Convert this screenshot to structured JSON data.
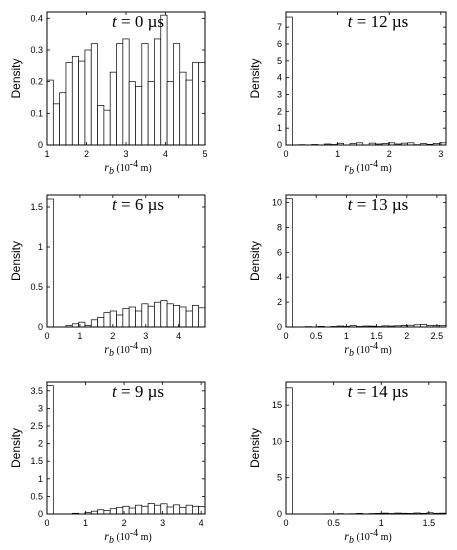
{
  "chart_data": [
    {
      "type": "bar",
      "title": "t = 0 µs",
      "title_var": "t",
      "title_rest": " = 0 µs",
      "ylabel": "Density",
      "xlabel": {
        "var": "r",
        "sub": "b",
        "unit": " (10",
        "exp": "-4",
        "unit_end": " m)"
      },
      "xlim": [
        1,
        5
      ],
      "ylim": [
        0,
        0.42
      ],
      "xticks": [
        1,
        2,
        3,
        4,
        5
      ],
      "xtick_labels": [
        "1",
        "2",
        "3",
        "4",
        "5"
      ],
      "yticks": [
        0,
        0.1,
        0.2,
        0.3,
        0.4
      ],
      "ytick_labels": [
        "0",
        "0.1",
        "0.2",
        "0.3",
        "0.4"
      ],
      "bin_edges": [
        1.0,
        1.16,
        1.32,
        1.48,
        1.64,
        1.8,
        1.96,
        2.12,
        2.28,
        2.44,
        2.6,
        2.76,
        2.92,
        3.08,
        3.24,
        3.4,
        3.56,
        3.72,
        3.88,
        4.04,
        4.2,
        4.36,
        4.52,
        4.68,
        4.84,
        5.0
      ],
      "values": [
        0.205,
        0.13,
        0.165,
        0.26,
        0.28,
        0.265,
        0.3,
        0.32,
        0.125,
        0.11,
        0.23,
        0.32,
        0.335,
        0.2,
        0.185,
        0.32,
        0.2,
        0.335,
        0.41,
        0.2,
        0.32,
        0.23,
        0.205,
        0.26,
        0.26
      ]
    },
    {
      "type": "bar",
      "title": "t = 12 µs",
      "title_var": "t",
      "title_rest": " = 12 µs",
      "ylabel": "Density",
      "xlabel": {
        "var": "r",
        "sub": "b",
        "unit": " (10",
        "exp": "-4",
        "unit_end": " m)"
      },
      "xlim": [
        0,
        3.1
      ],
      "ylim": [
        0,
        7.9
      ],
      "xticks": [
        0,
        1,
        2,
        3
      ],
      "xtick_labels": [
        "0",
        "1",
        "2",
        "3"
      ],
      "yticks": [
        0,
        1,
        2,
        3,
        4,
        5,
        6,
        7
      ],
      "ytick_labels": [
        "0",
        "1",
        "2",
        "3",
        "4",
        "5",
        "6",
        "7"
      ],
      "bin_edges": [
        0,
        0.124,
        0.248,
        0.372,
        0.496,
        0.62,
        0.744,
        0.868,
        0.992,
        1.116,
        1.24,
        1.364,
        1.488,
        1.612,
        1.736,
        1.86,
        1.984,
        2.108,
        2.232,
        2.356,
        2.48,
        2.604,
        2.728,
        2.852,
        2.976,
        3.1
      ],
      "values": [
        7.6,
        0.0,
        0.02,
        0.0,
        0.03,
        0.0,
        0.06,
        0.03,
        0.1,
        0.0,
        0.08,
        0.13,
        0.0,
        0.11,
        0.06,
        0.09,
        0.13,
        0.06,
        0.11,
        0.13,
        0.02,
        0.08,
        0.04,
        0.1,
        0.13
      ]
    },
    {
      "type": "bar",
      "title": "t = 6 µs",
      "title_var": "t",
      "title_rest": " = 6 µs",
      "ylabel": "Density",
      "xlabel": {
        "var": "r",
        "sub": "b",
        "unit": " (10",
        "exp": "-4",
        "unit_end": " m)"
      },
      "xlim": [
        0,
        4.8
      ],
      "ylim": [
        0,
        1.65
      ],
      "xticks": [
        0,
        1,
        2,
        3,
        4
      ],
      "xtick_labels": [
        "0",
        "1",
        "2",
        "3",
        "4"
      ],
      "yticks": [
        0,
        0.5,
        1,
        1.5
      ],
      "ytick_labels": [
        "0",
        "0.5",
        "1",
        "1.5"
      ],
      "bin_edges": [
        0,
        0.192,
        0.384,
        0.576,
        0.768,
        0.96,
        1.152,
        1.344,
        1.536,
        1.728,
        1.92,
        2.112,
        2.304,
        2.496,
        2.688,
        2.88,
        3.072,
        3.264,
        3.456,
        3.648,
        3.84,
        4.032,
        4.224,
        4.416,
        4.608,
        4.8
      ],
      "values": [
        1.6,
        0.0,
        0.0,
        0.02,
        0.04,
        0.06,
        0.02,
        0.09,
        0.12,
        0.18,
        0.2,
        0.15,
        0.23,
        0.25,
        0.2,
        0.29,
        0.26,
        0.31,
        0.33,
        0.29,
        0.27,
        0.25,
        0.2,
        0.27,
        0.24
      ]
    },
    {
      "type": "bar",
      "title": "t = 13 µs",
      "title_var": "t",
      "title_rest": " = 13 µs",
      "ylabel": "Density",
      "xlabel": {
        "var": "r",
        "sub": "b",
        "unit": " (10",
        "exp": "-4",
        "unit_end": " m)"
      },
      "xlim": [
        0,
        2.65
      ],
      "ylim": [
        0,
        10.6
      ],
      "xticks": [
        0,
        0.5,
        1,
        1.5,
        2,
        2.5
      ],
      "xtick_labels": [
        "0",
        "0.5",
        "1",
        "1.5",
        "2",
        "2.5"
      ],
      "yticks": [
        0,
        2,
        4,
        6,
        8,
        10
      ],
      "ytick_labels": [
        "0",
        "2",
        "4",
        "6",
        "8",
        "10"
      ],
      "bin_edges": [
        0,
        0.106,
        0.212,
        0.318,
        0.424,
        0.53,
        0.636,
        0.742,
        0.848,
        0.954,
        1.06,
        1.166,
        1.272,
        1.378,
        1.484,
        1.59,
        1.696,
        1.802,
        1.908,
        2.014,
        2.12,
        2.226,
        2.332,
        2.438,
        2.544,
        2.65
      ],
      "values": [
        10.3,
        0.0,
        0.0,
        0.03,
        0.0,
        0.05,
        0.0,
        0.04,
        0.08,
        0.05,
        0.11,
        0.04,
        0.08,
        0.07,
        0.04,
        0.09,
        0.08,
        0.1,
        0.12,
        0.14,
        0.18,
        0.2,
        0.11,
        0.13,
        0.12
      ]
    },
    {
      "type": "bar",
      "title": "t = 9 µs",
      "title_var": "t",
      "title_rest": " = 9 µs",
      "ylabel": "Density",
      "xlabel": {
        "var": "r",
        "sub": "b",
        "unit": " (10",
        "exp": "-4",
        "unit_end": " m)"
      },
      "xlim": [
        0,
        4.1
      ],
      "ylim": [
        0,
        3.75
      ],
      "xticks": [
        0,
        1,
        2,
        3,
        4
      ],
      "xtick_labels": [
        "0",
        "1",
        "2",
        "3",
        "4"
      ],
      "yticks": [
        0,
        0.5,
        1,
        1.5,
        2,
        2.5,
        3,
        3.5
      ],
      "ytick_labels": [
        "0",
        "0.5",
        "1",
        "1.5",
        "2",
        "2.5",
        "3",
        "3.5"
      ],
      "bin_edges": [
        0,
        0.164,
        0.328,
        0.492,
        0.656,
        0.82,
        0.984,
        1.148,
        1.312,
        1.476,
        1.64,
        1.804,
        1.968,
        2.132,
        2.296,
        2.46,
        2.624,
        2.788,
        2.952,
        3.116,
        3.28,
        3.444,
        3.608,
        3.772,
        3.936,
        4.1
      ],
      "values": [
        3.65,
        0.0,
        0.0,
        0.0,
        0.02,
        0.0,
        0.04,
        0.08,
        0.12,
        0.1,
        0.15,
        0.19,
        0.22,
        0.17,
        0.25,
        0.22,
        0.3,
        0.25,
        0.29,
        0.2,
        0.26,
        0.19,
        0.25,
        0.22,
        0.21
      ]
    },
    {
      "type": "bar",
      "title": "t = 14 µs",
      "title_var": "t",
      "title_rest": " = 14 µs",
      "ylabel": "Density",
      "xlabel": {
        "var": "r",
        "sub": "b",
        "unit": " (10",
        "exp": "-4",
        "unit_end": " m)"
      },
      "xlim": [
        0,
        1.68
      ],
      "ylim": [
        0,
        18.2
      ],
      "xticks": [
        0,
        0.5,
        1,
        1.5
      ],
      "xtick_labels": [
        "0",
        "0.5",
        "1",
        "1.5"
      ],
      "yticks": [
        0,
        5,
        10,
        15
      ],
      "ytick_labels": [
        "0",
        "5",
        "10",
        "15"
      ],
      "bin_edges": [
        0,
        0.0672,
        0.1344,
        0.2016,
        0.2688,
        0.336,
        0.4032,
        0.4704,
        0.5376,
        0.6048,
        0.672,
        0.7392,
        0.8064,
        0.8736,
        0.9408,
        1.008,
        1.0752,
        1.1424,
        1.2096,
        1.2768,
        1.344,
        1.4112,
        1.4784,
        1.5456,
        1.6128,
        1.68
      ],
      "values": [
        17.4,
        0.0,
        0.0,
        0.0,
        0.0,
        0.0,
        0.03,
        0.0,
        0.05,
        0.0,
        0.04,
        0.08,
        0.03,
        0.06,
        0.09,
        0.12,
        0.07,
        0.13,
        0.1,
        0.08,
        0.14,
        0.09,
        0.17,
        0.1,
        0.12
      ]
    }
  ]
}
